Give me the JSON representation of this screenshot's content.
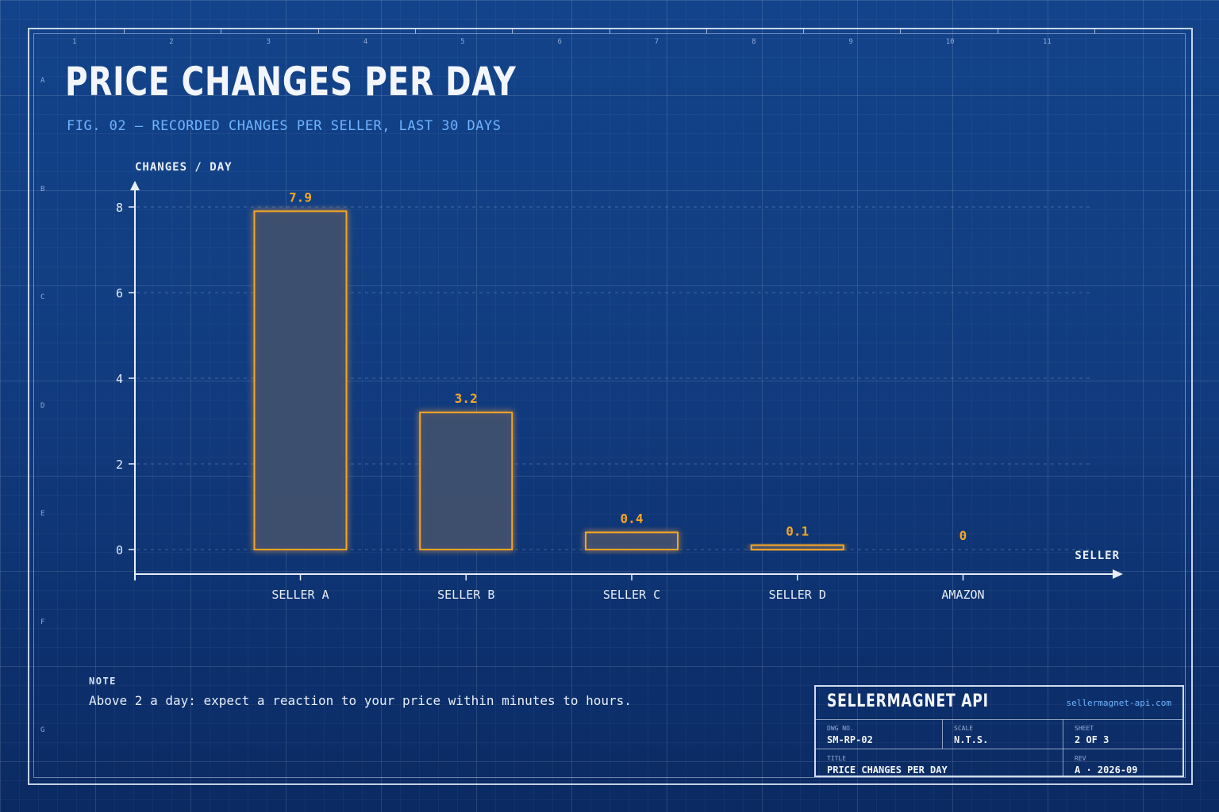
{
  "frame": {
    "columns": [
      "1",
      "2",
      "3",
      "4",
      "5",
      "6",
      "7",
      "8",
      "9",
      "10",
      "11"
    ],
    "rows": [
      "A",
      "B",
      "C",
      "D",
      "E",
      "F",
      "G"
    ]
  },
  "header": {
    "title": "PRICE CHANGES PER DAY",
    "subtitle": "FIG. 02  —  RECORDED CHANGES PER SELLER, LAST 30 DAYS"
  },
  "chart_data": {
    "type": "bar",
    "title": "PRICE CHANGES PER DAY",
    "ylabel": "CHANGES / DAY",
    "xlabel": "SELLER",
    "categories": [
      "SELLER A",
      "SELLER B",
      "SELLER C",
      "SELLER D",
      "AMAZON"
    ],
    "values": [
      7.9,
      3.2,
      0.4,
      0.1,
      0
    ],
    "value_labels": [
      "7.9",
      "3.2",
      "0.4",
      "0.1",
      "0"
    ],
    "ylim": [
      0,
      8
    ],
    "yticks": [
      0,
      2,
      4,
      6,
      8
    ],
    "grid": true,
    "colors": {
      "bar_stroke": "#f5a623",
      "bar_fill": "#3d4f6e",
      "axis": "#e8eef8",
      "tick_label": "#e8eef8"
    }
  },
  "note": {
    "label": "NOTE",
    "text": "Above 2 a day: expect a reaction to your price within minutes to hours."
  },
  "title_block": {
    "brand": "SELLERMAGNET API",
    "url": "sellermagnet-api.com",
    "dwg_no_label": "DWG NO.",
    "dwg_no": "SM-RP-02",
    "scale_label": "SCALE",
    "scale": "N.T.S.",
    "sheet_label": "SHEET",
    "sheet": "2 OF 3",
    "title_label": "TITLE",
    "title": "PRICE CHANGES PER DAY",
    "rev_label": "REV",
    "rev": "A · 2026-09"
  }
}
